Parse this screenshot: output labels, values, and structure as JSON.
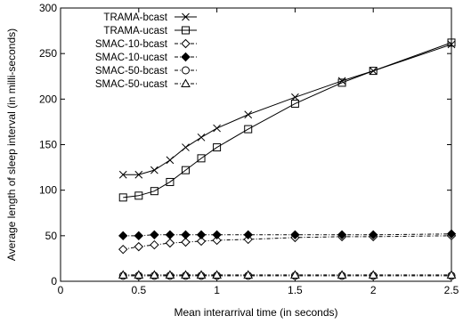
{
  "chart_data": {
    "type": "line",
    "title": "",
    "xlabel": "Mean interarrival time (in seconds)",
    "ylabel": "Average length of sleep interval (in milli-seconds)",
    "xlim": [
      0,
      2.5
    ],
    "ylim": [
      0,
      300
    ],
    "xticks": [
      "0",
      "0.5",
      "1",
      "1.5",
      "2",
      "2.5"
    ],
    "yticks": [
      "0",
      "50",
      "100",
      "150",
      "200",
      "250",
      "300"
    ],
    "grid": false,
    "legend_position": "top-left",
    "series": [
      {
        "name": "TRAMA-bcast",
        "marker": "x",
        "dash": "solid",
        "x": [
          0.4,
          0.5,
          0.6,
          0.7,
          0.8,
          0.9,
          1.0,
          1.2,
          1.5,
          1.8,
          2.0,
          2.5
        ],
        "y": [
          117,
          117,
          122,
          133,
          147,
          158,
          168,
          183,
          202,
          220,
          231,
          260
        ]
      },
      {
        "name": "TRAMA-ucast",
        "marker": "square",
        "dash": "solid",
        "x": [
          0.4,
          0.5,
          0.6,
          0.7,
          0.8,
          0.9,
          1.0,
          1.2,
          1.5,
          1.8,
          2.0,
          2.5
        ],
        "y": [
          92,
          94,
          99,
          109,
          122,
          135,
          147,
          167,
          195,
          218,
          231,
          262
        ]
      },
      {
        "name": "SMAC-10-bcast",
        "marker": "diamond-open",
        "dash": "dashdot",
        "x": [
          0.4,
          0.5,
          0.6,
          0.7,
          0.8,
          0.9,
          1.0,
          1.2,
          1.5,
          1.8,
          2.0,
          2.5
        ],
        "y": [
          35,
          38,
          40,
          42,
          43,
          44,
          45,
          46,
          48,
          49,
          49,
          50
        ]
      },
      {
        "name": "SMAC-10-ucast",
        "marker": "diamond-filled",
        "dash": "dashdot",
        "x": [
          0.4,
          0.5,
          0.6,
          0.7,
          0.8,
          0.9,
          1.0,
          1.2,
          1.5,
          1.8,
          2.0,
          2.5
        ],
        "y": [
          50,
          50,
          51,
          51,
          51,
          51,
          51,
          51,
          51,
          51,
          51,
          52
        ]
      },
      {
        "name": "SMAC-50-bcast",
        "marker": "circle",
        "dash": "dashdot",
        "x": [
          0.4,
          0.5,
          0.6,
          0.7,
          0.8,
          0.9,
          1.0,
          1.2,
          1.5,
          1.8,
          2.0,
          2.5
        ],
        "y": [
          6,
          6,
          6,
          6,
          6,
          6,
          6,
          6,
          6,
          6,
          6,
          6
        ]
      },
      {
        "name": "SMAC-50-ucast",
        "marker": "triangle",
        "dash": "dashdot",
        "x": [
          0.4,
          0.5,
          0.6,
          0.7,
          0.8,
          0.9,
          1.0,
          1.2,
          1.5,
          1.8,
          2.0,
          2.5
        ],
        "y": [
          7,
          7,
          7,
          7,
          7,
          7,
          7,
          7,
          7,
          7,
          7,
          7
        ]
      }
    ]
  }
}
